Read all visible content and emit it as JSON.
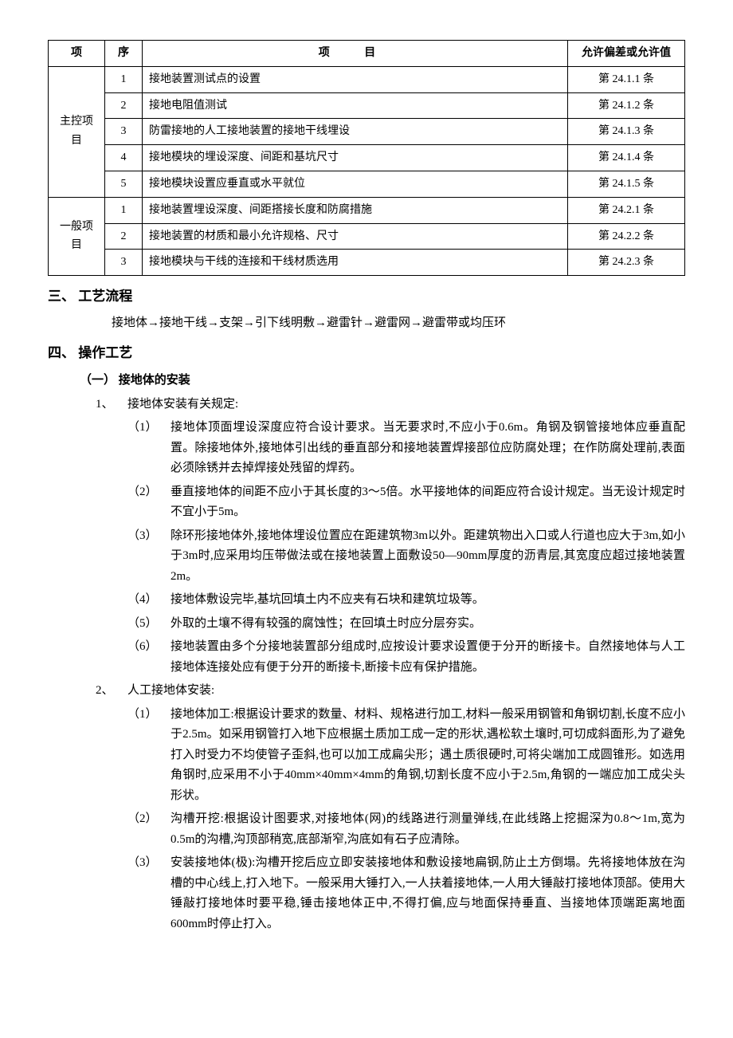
{
  "table": {
    "headers": {
      "proj": "项",
      "seq": "序",
      "item": "项    目",
      "allow": "允许偏差或允许值"
    },
    "groups": [
      {
        "label": "主控项目",
        "rows": [
          {
            "seq": "1",
            "item": "接地装置测试点的设置",
            "allow": "第 24.1.1 条"
          },
          {
            "seq": "2",
            "item": "接地电阻值测试",
            "allow": "第 24.1.2 条"
          },
          {
            "seq": "3",
            "item": "防雷接地的人工接地装置的接地干线埋设",
            "allow": "第 24.1.3 条"
          },
          {
            "seq": "4",
            "item": "接地模块的埋设深度、间距和基坑尺寸",
            "allow": "第 24.1.4 条"
          },
          {
            "seq": "5",
            "item": "接地模块设置应垂直或水平就位",
            "allow": "第 24.1.5 条"
          }
        ]
      },
      {
        "label": "一般项目",
        "rows": [
          {
            "seq": "1",
            "item": "接地装置埋设深度、间距搭接长度和防腐措施",
            "allow": "第 24.2.1 条"
          },
          {
            "seq": "2",
            "item": "接地装置的材质和最小允许规格、尺寸",
            "allow": "第 24.2.2 条"
          },
          {
            "seq": "3",
            "item": "接地模块与干线的连接和干线材质选用",
            "allow": "第 24.2.3 条"
          }
        ]
      }
    ]
  },
  "sec3": {
    "title": "三、 工艺流程",
    "body": "接地体→接地干线→支架→引下线明敷→避雷针→避雷网→避雷带或均压环"
  },
  "sec4": {
    "title": "四、 操作工艺",
    "sub1": {
      "title": "（一） 接地体的安装",
      "item1": {
        "num": "1、",
        "label": "接地体安装有关规定:",
        "subs": [
          {
            "num": "（1）",
            "text": "接地体顶面埋设深度应符合设计要求。当无要求时,不应小于0.6m。角钢及钢管接地体应垂直配置。除接地体外,接地体引出线的垂直部分和接地装置焊接部位应防腐处理；在作防腐处理前,表面必须除锈并去掉焊接处残留的焊药。"
          },
          {
            "num": "（2）",
            "text": "垂直接地体的间距不应小于其长度的3～5倍。水平接地体的间距应符合设计规定。当无设计规定时不宜小于5m。"
          },
          {
            "num": "（3）",
            "text": "除环形接地体外,接地体埋设位置应在距建筑物3m以外。距建筑物出入口或人行道也应大于3m,如小于3m时,应采用均压带做法或在接地装置上面敷设50—90mm厚度的沥青层,其宽度应超过接地装置2m。"
          },
          {
            "num": "（4）",
            "text": "接地体敷设完毕,基坑回填土内不应夹有石块和建筑垃圾等。"
          },
          {
            "num": "（5）",
            "text": "外取的土壤不得有较强的腐蚀性；在回填土时应分层夯实。"
          },
          {
            "num": "（6）",
            "text": "接地装置由多个分接地装置部分组成时,应按设计要求设置便于分开的断接卡。自然接地体与人工接地体连接处应有便于分开的断接卡,断接卡应有保护措施。"
          }
        ]
      },
      "item2": {
        "num": "2、",
        "label": "人工接地体安装:",
        "subs": [
          {
            "num": "（1）",
            "text": "接地体加工:根据设计要求的数量、材料、规格进行加工,材料一般采用钢管和角钢切割,长度不应小于2.5m。如采用钢管打入地下应根据土质加工成一定的形状,遇松软土壤时,可切成斜面形,为了避免打入时受力不均使管子歪斜,也可以加工成扁尖形；遇土质很硬时,可将尖端加工成圆锥形。如选用角钢时,应采用不小于40mm×40mm×4mm的角钢,切割长度不应小于2.5m,角钢的一端应加工成尖头形状。"
          },
          {
            "num": "（2）",
            "text": "沟槽开挖:根据设计图要求,对接地体(网)的线路进行测量弹线,在此线路上挖掘深为0.8～1m,宽为0.5m的沟槽,沟顶部稍宽,底部渐窄,沟底如有石子应清除。"
          },
          {
            "num": "（3）",
            "text": "安装接地体(极):沟槽开挖后应立即安装接地体和敷设接地扁钢,防止土方倒塌。先将接地体放在沟槽的中心线上,打入地下。一般采用大锤打入,一人扶着接地体,一人用大锤敲打接地体顶部。使用大锤敲打接地体时要平稳,锤击接地体正中,不得打偏,应与地面保持垂直、当接地体顶端距离地面600mm时停止打入。"
          }
        ]
      }
    }
  }
}
